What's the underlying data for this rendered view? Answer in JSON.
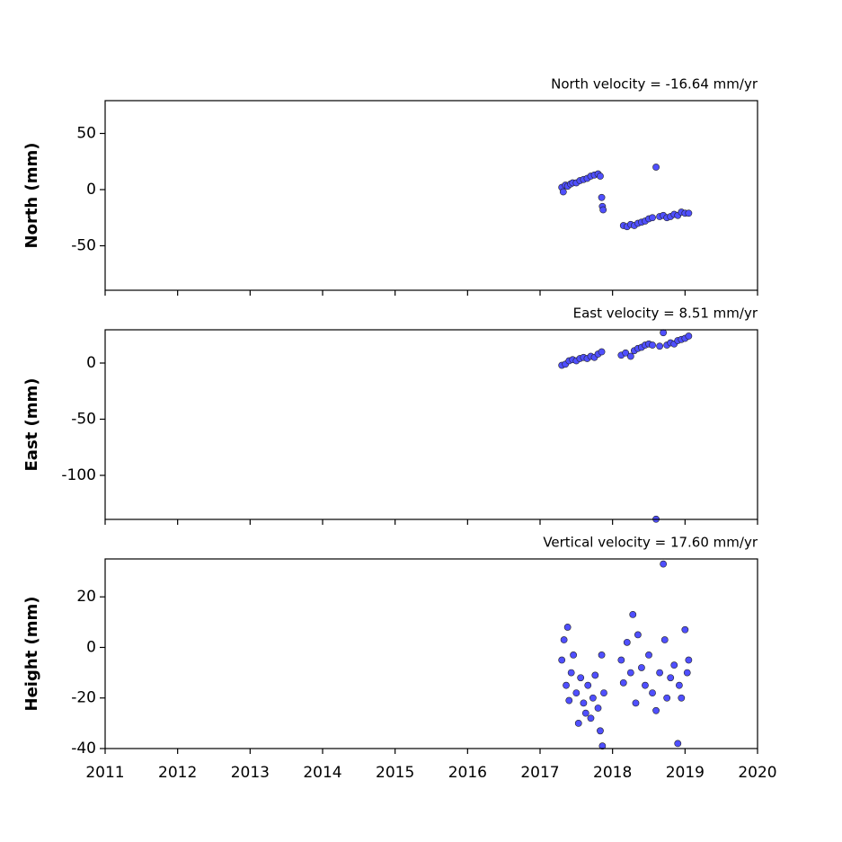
{
  "chart_data": [
    {
      "type": "scatter",
      "title": "North velocity = -16.64 mm/yr",
      "ylabel": "North (mm)",
      "color": "#4f4fff",
      "xlim": [
        2011,
        2020
      ],
      "ylim": [
        -89.6,
        79.2
      ],
      "yticks": [
        -50,
        0,
        50
      ],
      "x": [
        2017.3,
        2017.32,
        2017.35,
        2017.38,
        2017.42,
        2017.45,
        2017.5,
        2017.55,
        2017.6,
        2017.65,
        2017.7,
        2017.75,
        2017.8,
        2017.83,
        2017.85,
        2017.86,
        2017.87,
        2018.15,
        2018.2,
        2018.25,
        2018.3,
        2018.35,
        2018.4,
        2018.45,
        2018.5,
        2018.55,
        2018.6,
        2018.65,
        2018.7,
        2018.75,
        2018.8,
        2018.85,
        2018.9,
        2018.95,
        2019.0,
        2019.05
      ],
      "values": [
        2,
        -2,
        4,
        3,
        5,
        6,
        6,
        8,
        9,
        10,
        12,
        13,
        14,
        12,
        -7,
        -15,
        -18,
        -32,
        -33,
        -31,
        -32,
        -30,
        -29,
        -28,
        -26,
        -25,
        20,
        -24,
        -23,
        -25,
        -24,
        -22,
        -23,
        -20,
        -21,
        -21
      ]
    },
    {
      "type": "scatter",
      "title": "East velocity = 8.51 mm/yr",
      "ylabel": "East (mm)",
      "color": "#4f4fff",
      "xlim": [
        2011,
        2020
      ],
      "ylim": [
        -139.2,
        29.6
      ],
      "yticks": [
        -100,
        -50,
        0
      ],
      "x": [
        2017.3,
        2017.35,
        2017.4,
        2017.45,
        2017.5,
        2017.55,
        2017.6,
        2017.65,
        2017.7,
        2017.75,
        2017.8,
        2017.85,
        2018.12,
        2018.18,
        2018.25,
        2018.3,
        2018.35,
        2018.4,
        2018.45,
        2018.5,
        2018.55,
        2018.6,
        2018.65,
        2018.7,
        2018.75,
        2018.8,
        2018.85,
        2018.9,
        2018.95,
        2019.0,
        2019.05
      ],
      "values": [
        -2,
        -1,
        2,
        3,
        2,
        4,
        5,
        4,
        6,
        5,
        8,
        10,
        7,
        9,
        6,
        11,
        13,
        14,
        16,
        17,
        16,
        -139,
        15,
        27,
        16,
        18,
        17,
        20,
        21,
        22,
        24
      ]
    },
    {
      "type": "scatter",
      "title": "Vertical velocity = 17.60 mm/yr",
      "ylabel": "Height (mm)",
      "color": "#4f4fff",
      "xlim": [
        2011,
        2020
      ],
      "xticks": [
        2011,
        2012,
        2013,
        2014,
        2015,
        2016,
        2017,
        2018,
        2019,
        2020
      ],
      "ylim": [
        -40,
        35
      ],
      "yticks": [
        -40,
        -20,
        0,
        20
      ],
      "x": [
        2017.3,
        2017.33,
        2017.36,
        2017.38,
        2017.4,
        2017.43,
        2017.46,
        2017.5,
        2017.53,
        2017.56,
        2017.6,
        2017.63,
        2017.66,
        2017.7,
        2017.73,
        2017.76,
        2017.8,
        2017.83,
        2017.85,
        2017.86,
        2017.88,
        2018.12,
        2018.15,
        2018.2,
        2018.25,
        2018.28,
        2018.32,
        2018.35,
        2018.4,
        2018.45,
        2018.5,
        2018.55,
        2018.6,
        2018.65,
        2018.7,
        2018.72,
        2018.75,
        2018.8,
        2018.85,
        2018.9,
        2018.92,
        2018.95,
        2019.0,
        2019.03,
        2019.05
      ],
      "values": [
        -5,
        3,
        -15,
        8,
        -21,
        -10,
        -3,
        -18,
        -30,
        -12,
        -22,
        -26,
        -15,
        -28,
        -20,
        -11,
        -24,
        -33,
        -3,
        -39,
        -18,
        -5,
        -14,
        2,
        -10,
        13,
        -22,
        5,
        -8,
        -15,
        -3,
        -18,
        -25,
        -10,
        33,
        3,
        -20,
        -12,
        -7,
        -38,
        -15,
        -20,
        7,
        -10,
        -5
      ]
    }
  ]
}
